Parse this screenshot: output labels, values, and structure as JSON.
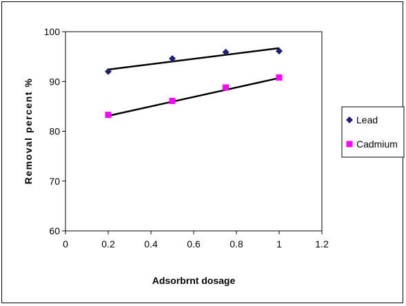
{
  "chart_data": {
    "type": "scatter",
    "xlabel": "Adsorbrnt dosage",
    "ylabel": "Removal percent %",
    "xlim": [
      0,
      1.2
    ],
    "ylim": [
      60,
      100
    ],
    "xticks": [
      "0",
      "0.2",
      "0.4",
      "0.6",
      "0.8",
      "1",
      "1.2"
    ],
    "yticks": [
      "60",
      "70",
      "80",
      "90",
      "100"
    ],
    "grid": false,
    "legend_position": "right",
    "series": [
      {
        "name": "Lead",
        "color": "#1F1F7A",
        "marker": "diamond",
        "x": [
          0.2,
          0.5,
          0.75,
          1.0
        ],
        "y": [
          92.0,
          94.6,
          95.9,
          96.1
        ],
        "trendline": [
          [
            0.2,
            92.4
          ],
          [
            1.0,
            96.7
          ]
        ]
      },
      {
        "name": "Cadmium",
        "color": "#FF00FF",
        "marker": "square",
        "x": [
          0.2,
          0.5,
          0.75,
          1.0
        ],
        "y": [
          83.3,
          86.1,
          88.8,
          90.8
        ],
        "trendline": [
          [
            0.2,
            83.1
          ],
          [
            1.0,
            90.7
          ]
        ]
      }
    ]
  }
}
